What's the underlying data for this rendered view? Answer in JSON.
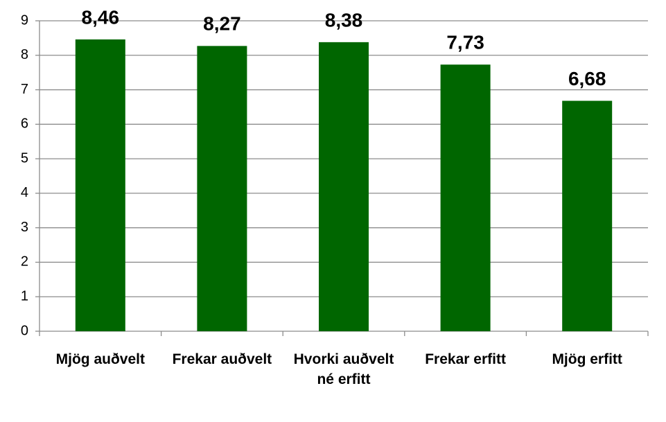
{
  "chart_data": {
    "type": "bar",
    "categories": [
      "Mjög auðvelt",
      "Frekar auðvelt",
      "Hvorki auðvelt né erfitt",
      "Frekar erfitt",
      "Mjög erfitt"
    ],
    "values": [
      8.46,
      8.27,
      8.38,
      7.73,
      6.68
    ],
    "value_labels": [
      "8,46",
      "8,27",
      "8,38",
      "7,73",
      "6,68"
    ],
    "color": "#006600",
    "ylim": [
      0,
      9
    ],
    "yticks": [
      0,
      1,
      2,
      3,
      4,
      5,
      6,
      7,
      8,
      9
    ],
    "grid": true
  }
}
